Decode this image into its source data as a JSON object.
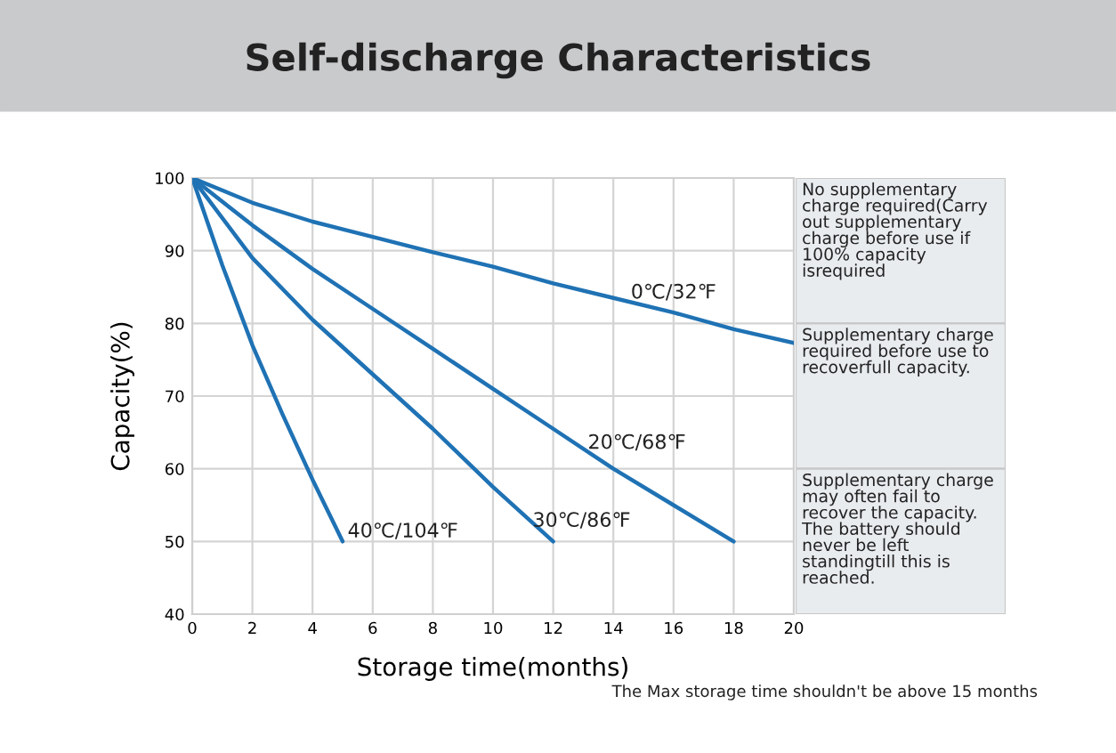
{
  "chart_data": {
    "type": "line",
    "title": "Self-discharge Characteristics",
    "xlabel": "Storage time(months)",
    "ylabel": "Capacity(%)",
    "xlim": [
      0,
      20
    ],
    "ylim": [
      40,
      100
    ],
    "xticks": [
      0,
      2,
      4,
      6,
      8,
      10,
      12,
      14,
      16,
      18,
      20
    ],
    "yticks": [
      40,
      50,
      60,
      70,
      80,
      90,
      100
    ],
    "grid": true,
    "line_style": "solid",
    "series": [
      {
        "name": "0℃/32℉",
        "color": "#1f72b4",
        "x": [
          0,
          2,
          4,
          6,
          8,
          10,
          12,
          14,
          16,
          18,
          20
        ],
        "values": [
          100,
          96.6,
          94,
          91.9,
          89.8,
          87.8,
          85.5,
          83.5,
          81.5,
          79.2,
          77.3
        ]
      },
      {
        "name": "20℃/68℉",
        "color": "#1f72b4",
        "x": [
          0,
          2,
          4,
          6,
          8,
          10,
          12,
          14,
          16,
          18
        ],
        "values": [
          100,
          93.5,
          87.5,
          82,
          76.5,
          71,
          65.5,
          60,
          55,
          50
        ]
      },
      {
        "name": "30℃/86℉",
        "color": "#1f72b4",
        "x": [
          0,
          2,
          4,
          6,
          8,
          10,
          12
        ],
        "values": [
          100,
          89,
          80.5,
          73,
          65.5,
          57.5,
          50
        ]
      },
      {
        "name": "40℃/104℉",
        "color": "#1f72b4",
        "x": [
          0,
          1,
          2,
          3,
          4,
          5
        ],
        "values": [
          100,
          88,
          77,
          67.5,
          58.5,
          50
        ]
      }
    ],
    "annotations": [
      "No supplementary\ncharge required(Carry\nout supplementary\ncharge before use if\n100% capacity\nisrequired",
      "Supplementary charge\nrequired before use to\nrecoverfull capacity.",
      "Supplementary charge\nmay often fail to\nrecover the capacity.\nThe battery should\nnever be left\nstandingtill this is\nreached.",
      "The Max storage time shouldn't be above 15 months"
    ]
  }
}
